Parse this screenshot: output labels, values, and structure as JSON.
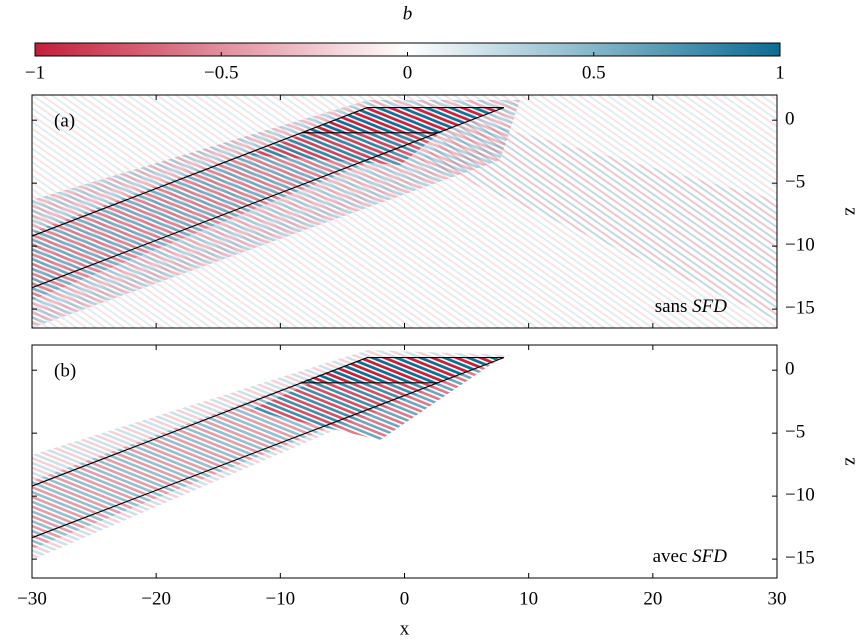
{
  "colorbar": {
    "label": "b",
    "clim": [
      -1,
      1
    ],
    "colors": [
      "#c41e3a",
      "#ffffff",
      "#0a6c93"
    ],
    "ticks": [
      {
        "value": -1,
        "label": "−1"
      },
      {
        "value": -0.5,
        "label": "−0.5"
      },
      0,
      0.5,
      1
    ]
  },
  "chart_data": [
    {
      "type": "heatmap",
      "panel_label": "(a)",
      "note": "sans",
      "note_emph": "SFD",
      "ylabel": "z",
      "xlim": [
        -30,
        30
      ],
      "ylim": [
        -16.5,
        2
      ],
      "xticks": [
        -30,
        -20,
        -10,
        0,
        10,
        20,
        30
      ],
      "yticks": [
        {
          "value": 0,
          "label": "0"
        },
        {
          "value": -5,
          "label": "−5"
        },
        {
          "value": -10,
          "label": "−10"
        },
        {
          "value": -15,
          "label": "−15"
        }
      ],
      "outline": [
        {
          "x": [
            -30,
            -3,
            8,
            -30
          ],
          "y": [
            -9.2,
            1,
            1,
            -13.3
          ]
        },
        {
          "x": [
            -8.3,
            2.7
          ],
          "y": [
            -1,
            -1
          ]
        }
      ]
    },
    {
      "type": "heatmap",
      "panel_label": "(b)",
      "note": "avec",
      "note_emph": "SFD",
      "ylabel": "z",
      "xlabel": "x",
      "xlim": [
        -30,
        30
      ],
      "ylim": [
        -16.5,
        2
      ],
      "xticks": [
        {
          "value": -30,
          "label": "−30"
        },
        {
          "value": -20,
          "label": "−20"
        },
        {
          "value": -10,
          "label": "−10"
        },
        0,
        10,
        20,
        30
      ],
      "yticks": [
        {
          "value": 0,
          "label": "0"
        },
        {
          "value": -5,
          "label": "−5"
        },
        {
          "value": -10,
          "label": "−10"
        },
        {
          "value": -15,
          "label": "−15"
        }
      ],
      "outline": [
        {
          "x": [
            -30,
            -3,
            8,
            -30
          ],
          "y": [
            -9.2,
            1,
            1,
            -13.3
          ]
        },
        {
          "x": [
            -8.3,
            2.7
          ],
          "y": [
            -1,
            -1
          ]
        }
      ]
    }
  ]
}
